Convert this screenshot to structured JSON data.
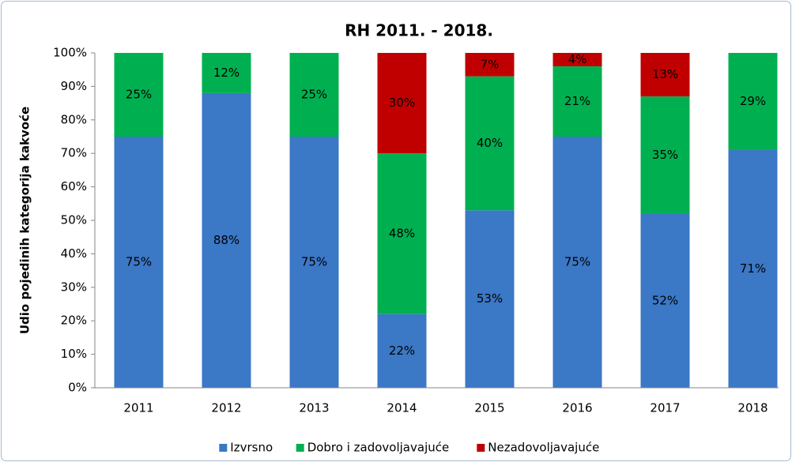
{
  "chart_data": {
    "type": "stacked_bar",
    "title": "RH 2011. - 2018.",
    "y_label": "Udio pojedinih kategorija kakvoće",
    "categories": [
      "2011",
      "2012",
      "2013",
      "2014",
      "2015",
      "2016",
      "2017",
      "2018"
    ],
    "series": [
      {
        "name": "Izvrsno",
        "color": "#3b78c6",
        "values": [
          75,
          88,
          75,
          22,
          53,
          75,
          52,
          71
        ],
        "value_labels": [
          "75%",
          "88%",
          "75%",
          "22%",
          "53%",
          "75%",
          "52%",
          "71%"
        ]
      },
      {
        "name": "Dobro i zadovoljavajuće",
        "color": "#00b050",
        "values": [
          25,
          12,
          25,
          48,
          40,
          21,
          35,
          29
        ],
        "value_labels": [
          "25%",
          "12%",
          "25%",
          "48%",
          "40%",
          "21%",
          "35%",
          "29%"
        ]
      },
      {
        "name": "Nezadovoljavajuće",
        "color": "#c00000",
        "values": [
          null,
          null,
          null,
          30,
          7,
          4,
          13,
          null
        ],
        "value_labels": [
          null,
          null,
          null,
          "30%",
          "7%",
          "4%",
          "13%",
          null
        ]
      }
    ],
    "ylim": [
      0,
      100
    ],
    "yticks": [
      {
        "value": 0,
        "label": "0%"
      },
      {
        "value": 10,
        "label": "10%"
      },
      {
        "value": 20,
        "label": "20%"
      },
      {
        "value": 30,
        "label": "30%"
      },
      {
        "value": 40,
        "label": "40%"
      },
      {
        "value": 50,
        "label": "50%"
      },
      {
        "value": 60,
        "label": "60%"
      },
      {
        "value": 70,
        "label": "70%"
      },
      {
        "value": 80,
        "label": "80%"
      },
      {
        "value": 90,
        "label": "90%"
      },
      {
        "value": 100,
        "label": "100%"
      }
    ],
    "legend": "bottom"
  }
}
